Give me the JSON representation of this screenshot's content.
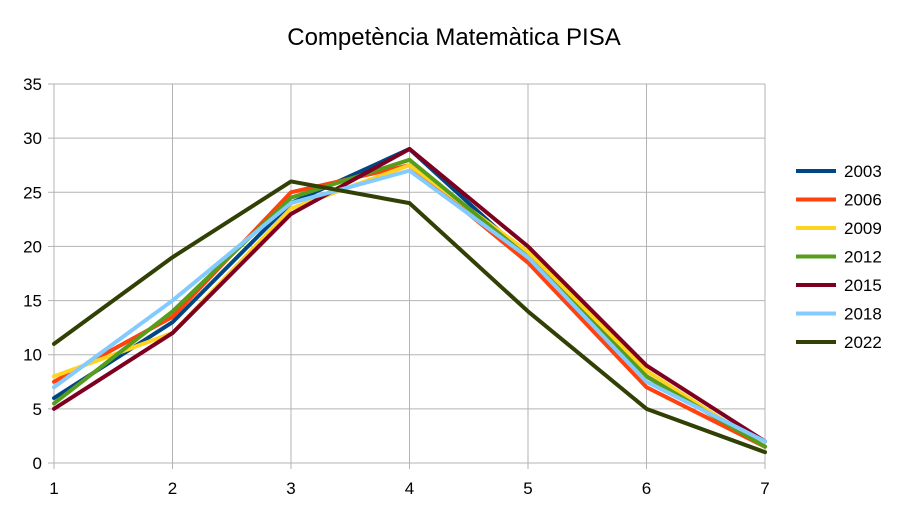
{
  "chart_data": {
    "type": "line",
    "title": "Competència Matemàtica PISA",
    "x": [
      1,
      2,
      3,
      4,
      5,
      6,
      7
    ],
    "xlim": [
      1,
      7
    ],
    "ylim": [
      0,
      35
    ],
    "yticks": [
      0,
      5,
      10,
      15,
      20,
      25,
      30,
      35
    ],
    "grid": true,
    "legend_position": "right",
    "series": [
      {
        "name": "2003",
        "color": "#004586",
        "values": [
          6,
          13,
          24,
          29,
          19,
          8,
          1.5
        ]
      },
      {
        "name": "2006",
        "color": "#ff420e",
        "values": [
          7.5,
          13.5,
          25,
          27.5,
          18.5,
          7,
          1.5
        ]
      },
      {
        "name": "2009",
        "color": "#ffd320",
        "values": [
          8,
          12,
          23.5,
          27.5,
          19.5,
          8.5,
          1.5
        ]
      },
      {
        "name": "2012",
        "color": "#579d1c",
        "values": [
          5.5,
          14,
          24.5,
          28,
          19,
          8,
          1.5
        ]
      },
      {
        "name": "2015",
        "color": "#7e0021",
        "values": [
          5,
          12,
          23,
          29,
          20,
          9,
          2
        ]
      },
      {
        "name": "2018",
        "color": "#83caff",
        "values": [
          7,
          15,
          24,
          27,
          19,
          7.5,
          2
        ]
      },
      {
        "name": "2022",
        "color": "#314004",
        "values": [
          11,
          19,
          26,
          24,
          14,
          5,
          1
        ]
      }
    ]
  }
}
